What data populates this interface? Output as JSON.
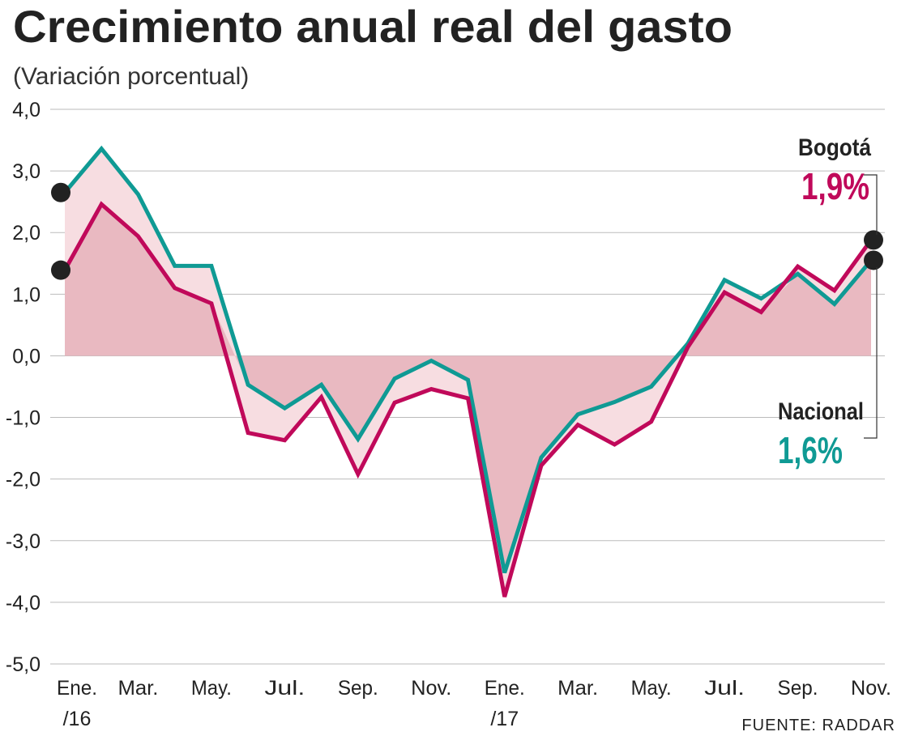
{
  "chart_data": {
    "type": "line",
    "title": "Crecimiento anual real del gasto",
    "subtitle": "(Variación porcentual)",
    "source": "FUENTE: RADDAR",
    "ylim": [
      -5,
      4
    ],
    "yticks": [
      "4,0",
      "3,0",
      "2,0",
      "1,0",
      "0,0",
      "-1,0",
      "-2,0",
      "-3,0",
      "-4,0",
      "-5,0"
    ],
    "ytick_values": [
      4,
      3,
      2,
      1,
      0,
      -1,
      -2,
      -3,
      -4,
      -5
    ],
    "xtick_labels": [
      {
        "index": 0,
        "line1": "Ene.",
        "line2": "/16"
      },
      {
        "index": 2,
        "line1": "Mar.",
        "line2": ""
      },
      {
        "index": 4,
        "line1": "May.",
        "line2": ""
      },
      {
        "index": 6,
        "line1": "Jul.",
        "line2": ""
      },
      {
        "index": 8,
        "line1": "Sep.",
        "line2": ""
      },
      {
        "index": 10,
        "line1": "Nov.",
        "line2": ""
      },
      {
        "index": 12,
        "line1": "Ene.",
        "line2": "/17"
      },
      {
        "index": 14,
        "line1": "Mar.",
        "line2": ""
      },
      {
        "index": 16,
        "line1": "May.",
        "line2": ""
      },
      {
        "index": 18,
        "line1": "Jul.",
        "line2": ""
      },
      {
        "index": 20,
        "line1": "Sep.",
        "line2": ""
      },
      {
        "index": 22,
        "line1": "Nov.",
        "line2": ""
      }
    ],
    "grid": true,
    "series": [
      {
        "name": "Nacional",
        "color": "#0f9a94",
        "final_label": "1,6%",
        "values": [
          2.65,
          3.36,
          2.62,
          1.46,
          1.46,
          -0.47,
          -0.85,
          -0.47,
          -1.35,
          -0.37,
          -0.08,
          -0.39,
          -3.52,
          -1.65,
          -0.95,
          -0.75,
          -0.5,
          0.2,
          1.23,
          0.93,
          1.33,
          0.84,
          1.55
        ]
      },
      {
        "name": "Bogotá",
        "color": "#c0095a",
        "final_label": "1,9%",
        "values": [
          1.39,
          2.46,
          1.94,
          1.1,
          0.85,
          -1.25,
          -1.37,
          -0.67,
          -1.92,
          -0.76,
          -0.54,
          -0.69,
          -3.91,
          -1.78,
          -1.12,
          -1.44,
          -1.07,
          0.14,
          1.03,
          0.71,
          1.45,
          1.06,
          1.88
        ]
      }
    ],
    "fill_colors": {
      "dark": "#e9b9c1",
      "light": "#f7dde1"
    }
  }
}
